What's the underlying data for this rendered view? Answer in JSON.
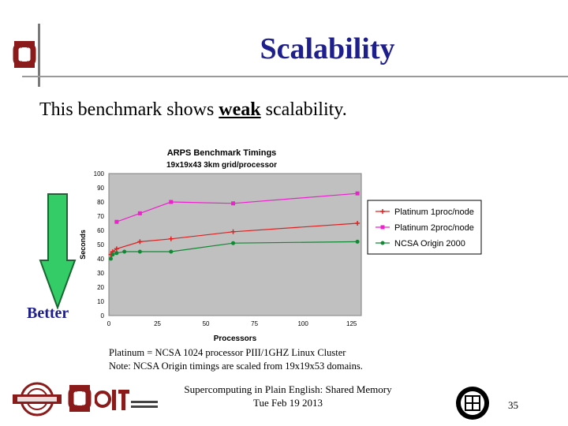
{
  "slide": {
    "title": "Scalability",
    "subtitle_prefix": "This benchmark shows ",
    "subtitle_emphasis": "weak",
    "subtitle_suffix": " scalability.",
    "better_label": "Better",
    "note_line1": "Platinum = NCSA 1024 processor PIII/1GHZ Linux Cluster",
    "note_line2": "Note: NCSA Origin timings are scaled from 19x19x53 domains.",
    "footer_line1": "Supercomputing in Plain English: Shared Memory",
    "footer_line2": "Tue Feb 19 2013",
    "page_number": "35",
    "colors": {
      "title": "#1e1e8c",
      "plot_bg": "#c0c0c0",
      "arrow": "#33cc66"
    },
    "icons": [
      "ou-logo-icon",
      "oscer-logo-icon",
      "oit-logo-icon",
      "seal-logo-icon",
      "better-arrow-icon"
    ]
  },
  "chart_data": {
    "type": "line",
    "title": "ARPS Benchmark Timings",
    "subtitle": "19x19x43 3km grid/processor",
    "xlabel": "Processors",
    "ylabel": "Seconds",
    "xlim": [
      0,
      130
    ],
    "ylim": [
      0,
      100
    ],
    "x_ticks": [
      0,
      25,
      50,
      75,
      100,
      125
    ],
    "x_tick_labels": [
      "0",
      "25",
      "50",
      "75",
      "100",
      "125"
    ],
    "y_ticks": [
      0,
      10,
      20,
      30,
      40,
      50,
      60,
      70,
      80,
      90,
      100
    ],
    "y_tick_labels": [
      "0",
      "10",
      "20",
      "30",
      "40",
      "50",
      "60",
      "70",
      "80",
      "90",
      "100"
    ],
    "grid": false,
    "legend_position": "right",
    "series": [
      {
        "name": "Platinum 1proc/node",
        "color": "#e02020",
        "marker": "plus",
        "x": [
          1,
          2,
          4,
          16,
          32,
          64,
          128
        ],
        "y": [
          43,
          45,
          47,
          52,
          54,
          59,
          65
        ]
      },
      {
        "name": "Platinum 2proc/node",
        "color": "#ee22cc",
        "marker": "square",
        "x": [
          4,
          16,
          32,
          64,
          128
        ],
        "y": [
          66,
          72,
          80,
          79,
          86
        ]
      },
      {
        "name": "NCSA Origin 2000",
        "color": "#118833",
        "marker": "circle",
        "x": [
          1,
          2,
          4,
          8,
          16,
          32,
          64,
          128
        ],
        "y": [
          40,
          43,
          44,
          45,
          45,
          45,
          51,
          52
        ]
      }
    ]
  }
}
